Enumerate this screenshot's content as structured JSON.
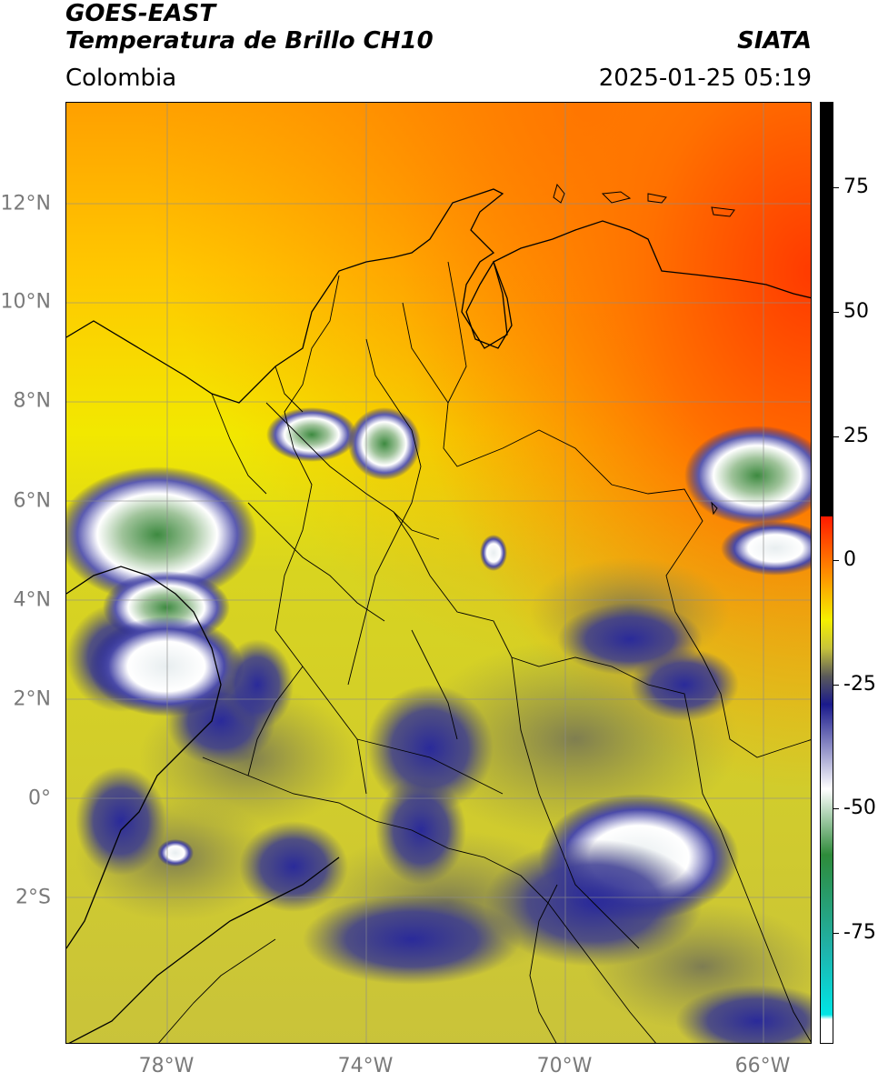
{
  "header": {
    "satellite": "GOES-EAST",
    "product": "Temperatura de Brillo CH10",
    "agency": "SIATA",
    "region": "Colombia",
    "datetime": "2025-01-25 05:19"
  },
  "map": {
    "lat_ticks": [
      {
        "label": "12°N",
        "value": 12
      },
      {
        "label": "10°N",
        "value": 10
      },
      {
        "label": "8°N",
        "value": 8
      },
      {
        "label": "6°N",
        "value": 6
      },
      {
        "label": "4°N",
        "value": 4
      },
      {
        "label": "2°N",
        "value": 2
      },
      {
        "label": "0°",
        "value": 0
      },
      {
        "label": "2°S",
        "value": -2
      }
    ],
    "lon_ticks": [
      {
        "label": "78°W",
        "value": -78
      },
      {
        "label": "74°W",
        "value": -74
      },
      {
        "label": "70°W",
        "value": -70
      },
      {
        "label": "66°W",
        "value": -66
      }
    ]
  },
  "colorbar": {
    "ticks": [
      "75",
      "50",
      "25",
      "0",
      "-25",
      "-50",
      "-75"
    ],
    "colors": {
      "warm_max": "#000000",
      "red": "#ff1a00",
      "orange": "#ff8c00",
      "yellow": "#f5f000",
      "olive": "#c8c43a",
      "gray": "#5a5a5a",
      "navy": "#1a1a8c",
      "white": "#ffffff",
      "green": "#2e8b3a",
      "teal": "#20b2aa",
      "cyan": "#00e5e5"
    }
  }
}
